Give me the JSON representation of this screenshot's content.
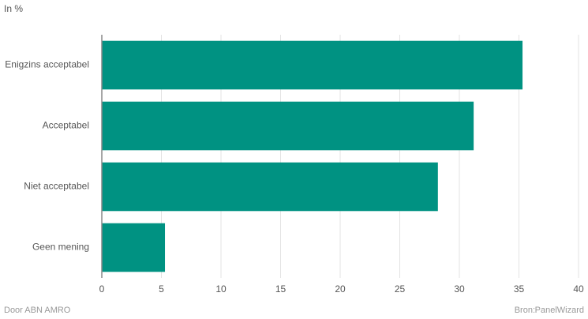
{
  "chart_data": {
    "type": "barh",
    "unit_label": "In %",
    "categories": [
      "Enigzins acceptabel",
      "Acceptabel",
      "Niet acceptabel",
      "Geen mening"
    ],
    "values": [
      35.3,
      31.2,
      28.2,
      5.3
    ],
    "color": "#009282",
    "xlim": [
      0,
      40
    ],
    "xticks": [
      0,
      5,
      10,
      15,
      20,
      25,
      30,
      35,
      40
    ],
    "grid": true,
    "credit": "Door ABN AMRO",
    "source_label": "Bron:",
    "source": "PanelWizard"
  }
}
